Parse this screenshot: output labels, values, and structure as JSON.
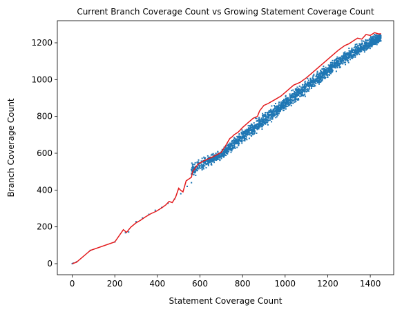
{
  "chart_data": {
    "type": "scatter",
    "title": "Current Branch Coverage Count vs Growing Statement Coverage Count",
    "xlabel": "Statement Coverage Count",
    "ylabel": "Branch Coverage Count",
    "xlim": [
      -70,
      1510
    ],
    "ylim": [
      -60,
      1320
    ],
    "xticks": [
      0,
      200,
      400,
      600,
      800,
      1000,
      1200,
      1400
    ],
    "yticks": [
      0,
      200,
      400,
      600,
      800,
      1000,
      1200
    ],
    "grid": false,
    "series": [
      {
        "kind": "scatter",
        "color": "#1f77b4",
        "points": [
          [
            0,
            0
          ],
          [
            5,
            3
          ],
          [
            20,
            10
          ],
          [
            85,
            72
          ],
          [
            200,
            118
          ],
          [
            250,
            168
          ],
          [
            265,
            172
          ],
          [
            300,
            228
          ],
          [
            330,
            248
          ],
          [
            360,
            268
          ],
          [
            390,
            290
          ],
          [
            420,
            305
          ],
          [
            450,
            328
          ],
          [
            480,
            350
          ],
          [
            510,
            380
          ],
          [
            540,
            420
          ],
          [
            560,
            440
          ],
          [
            580,
            480
          ],
          [
            610,
            510
          ],
          [
            640,
            540
          ],
          [
            700,
            590
          ],
          [
            760,
            650
          ],
          [
            820,
            710
          ],
          [
            880,
            770
          ],
          [
            940,
            830
          ],
          [
            1000,
            880
          ],
          [
            1060,
            940
          ],
          [
            1120,
            1000
          ],
          [
            1180,
            1060
          ],
          [
            1240,
            1110
          ],
          [
            1300,
            1170
          ],
          [
            1360,
            1210
          ],
          [
            1420,
            1245
          ]
        ],
        "band": [
          [
            560,
            470,
            560
          ],
          [
            700,
            560,
            620
          ],
          [
            800,
            640,
            740
          ],
          [
            900,
            730,
            830
          ],
          [
            1000,
            820,
            920
          ],
          [
            1100,
            910,
            1010
          ],
          [
            1200,
            1000,
            1100
          ],
          [
            1300,
            1090,
            1180
          ],
          [
            1400,
            1160,
            1240
          ],
          [
            1450,
            1200,
            1260
          ]
        ]
      },
      {
        "kind": "line",
        "color": "#e31a1c",
        "points": [
          [
            0,
            0
          ],
          [
            20,
            8
          ],
          [
            85,
            72
          ],
          [
            200,
            118
          ],
          [
            240,
            185
          ],
          [
            255,
            170
          ],
          [
            275,
            198
          ],
          [
            300,
            222
          ],
          [
            320,
            235
          ],
          [
            345,
            255
          ],
          [
            370,
            272
          ],
          [
            395,
            285
          ],
          [
            420,
            303
          ],
          [
            440,
            320
          ],
          [
            455,
            338
          ],
          [
            470,
            332
          ],
          [
            485,
            360
          ],
          [
            500,
            410
          ],
          [
            510,
            398
          ],
          [
            520,
            390
          ],
          [
            535,
            450
          ],
          [
            545,
            458
          ],
          [
            560,
            470
          ],
          [
            565,
            500
          ],
          [
            575,
            515
          ],
          [
            590,
            540
          ],
          [
            620,
            560
          ],
          [
            660,
            580
          ],
          [
            700,
            605
          ],
          [
            720,
            640
          ],
          [
            740,
            680
          ],
          [
            750,
            688
          ],
          [
            760,
            700
          ],
          [
            780,
            715
          ],
          [
            800,
            740
          ],
          [
            820,
            760
          ],
          [
            850,
            790
          ],
          [
            870,
            800
          ],
          [
            880,
            830
          ],
          [
            900,
            860
          ],
          [
            920,
            870
          ],
          [
            950,
            890
          ],
          [
            980,
            910
          ],
          [
            1010,
            940
          ],
          [
            1040,
            970
          ],
          [
            1070,
            985
          ],
          [
            1100,
            1010
          ],
          [
            1130,
            1040
          ],
          [
            1160,
            1070
          ],
          [
            1190,
            1100
          ],
          [
            1220,
            1130
          ],
          [
            1250,
            1160
          ],
          [
            1280,
            1185
          ],
          [
            1300,
            1195
          ],
          [
            1320,
            1210
          ],
          [
            1340,
            1225
          ],
          [
            1360,
            1220
          ],
          [
            1380,
            1245
          ],
          [
            1400,
            1240
          ],
          [
            1420,
            1255
          ],
          [
            1440,
            1248
          ],
          [
            1450,
            1250
          ]
        ]
      }
    ]
  }
}
